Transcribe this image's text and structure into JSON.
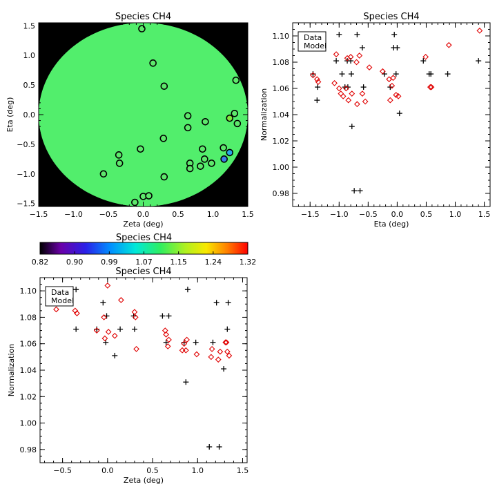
{
  "chart_data": [
    {
      "id": "map",
      "type": "scatter",
      "title": "Species CH4",
      "xlabel": "Zeta (deg)",
      "ylabel": "Eta (deg)",
      "xlim": [
        -1.5,
        1.5
      ],
      "ylim": [
        -1.55,
        1.55
      ],
      "xticks": [
        "−1.5",
        "−1.0",
        "−0.5",
        "0.0",
        "0.5",
        "1.0",
        "1.5"
      ],
      "yticks": [
        "−1.5",
        "−1.0",
        "−0.5",
        "0.0",
        "0.5",
        "1.0",
        "1.5"
      ],
      "background": "#000000",
      "field_color": "#52ee6c",
      "points": [
        {
          "x": -0.02,
          "y": 1.45,
          "c": "#5ee86c"
        },
        {
          "x": 0.14,
          "y": 0.87,
          "c": "#5ee86c"
        },
        {
          "x": 0.3,
          "y": 0.48,
          "c": "#5ee86c"
        },
        {
          "x": 1.33,
          "y": 0.58,
          "c": "#5ee86c"
        },
        {
          "x": 0.64,
          "y": -0.02,
          "c": "#5ee86c"
        },
        {
          "x": 1.31,
          "y": 0.02,
          "c": "#5ee86c"
        },
        {
          "x": 1.24,
          "y": -0.06,
          "c": "#7fe63c"
        },
        {
          "x": 0.89,
          "y": -0.12,
          "c": "#5ee86c"
        },
        {
          "x": 1.35,
          "y": -0.15,
          "c": "#5ee86c"
        },
        {
          "x": 0.64,
          "y": -0.22,
          "c": "#5ee86c"
        },
        {
          "x": 0.29,
          "y": -0.4,
          "c": "#5ee86c"
        },
        {
          "x": -0.04,
          "y": -0.58,
          "c": "#5ee86c"
        },
        {
          "x": 0.85,
          "y": -0.58,
          "c": "#5ee86c"
        },
        {
          "x": 1.15,
          "y": -0.56,
          "c": "#5ee86c"
        },
        {
          "x": 1.24,
          "y": -0.64,
          "c": "#2aa9e8"
        },
        {
          "x": -0.35,
          "y": -0.68,
          "c": "#5ee86c"
        },
        {
          "x": 0.88,
          "y": -0.75,
          "c": "#5ee86c"
        },
        {
          "x": 1.16,
          "y": -0.75,
          "c": "#3a7ee8"
        },
        {
          "x": -0.34,
          "y": -0.82,
          "c": "#5ee86c"
        },
        {
          "x": 0.67,
          "y": -0.82,
          "c": "#5ee86c"
        },
        {
          "x": 0.98,
          "y": -0.82,
          "c": "#5ee86c"
        },
        {
          "x": 0.82,
          "y": -0.87,
          "c": "#5ee86c"
        },
        {
          "x": 0.67,
          "y": -0.91,
          "c": "#5ee86c"
        },
        {
          "x": -0.57,
          "y": -1.0,
          "c": "#5ee86c"
        },
        {
          "x": 0.3,
          "y": -1.05,
          "c": "#5ee86c"
        },
        {
          "x": 0.0,
          "y": -1.38,
          "c": "#5ee86c"
        },
        {
          "x": 0.08,
          "y": -1.37,
          "c": "#5ee86c"
        },
        {
          "x": -0.12,
          "y": -1.48,
          "c": "#5ee86c"
        }
      ]
    },
    {
      "id": "colorbar",
      "type": "heatmap",
      "title": "Species CH4",
      "range": [
        0.82,
        1.32
      ],
      "tick_labels": [
        "0.82",
        "0.90",
        "0.99",
        "1.07",
        "1.15",
        "1.24",
        "1.32"
      ]
    },
    {
      "id": "eta",
      "type": "scatter",
      "title": "Species CH4",
      "xlabel": "Eta (deg)",
      "ylabel": "Normalization",
      "xlim": [
        -1.8,
        1.6
      ],
      "ylim": [
        0.97,
        1.11
      ],
      "xticks": [
        "−1.5",
        "−1.0",
        "−0.5",
        "0.0",
        "0.5",
        "1.0",
        "1.5"
      ],
      "yticks": [
        "0.98",
        "1.00",
        "1.02",
        "1.04",
        "1.06",
        "1.08",
        "1.10"
      ],
      "legend": [
        "Data",
        "Model"
      ],
      "series": [
        {
          "name": "Data",
          "marker": "plus",
          "color": "#000000",
          "x": [
            -1.45,
            -1.37,
            -1.38,
            -1.05,
            -1.0,
            -0.95,
            -0.9,
            -0.86,
            -0.85,
            -0.8,
            -0.79,
            -0.78,
            -0.74,
            -0.69,
            -0.64,
            -0.6,
            -0.58,
            -0.22,
            -0.12,
            -0.06,
            -0.05,
            -0.02,
            0.0,
            0.04,
            0.45,
            0.55,
            0.58,
            0.87,
            1.4
          ],
          "y": [
            1.071,
            1.061,
            1.051,
            1.081,
            1.101,
            1.071,
            1.061,
            1.081,
            1.061,
            1.081,
            1.071,
            1.031,
            0.982,
            1.101,
            0.982,
            1.091,
            1.061,
            1.071,
            1.061,
            1.091,
            1.101,
            1.071,
            1.091,
            1.041,
            1.081,
            1.071,
            1.071,
            1.071,
            1.081
          ]
        },
        {
          "name": "Model",
          "marker": "diamond",
          "color": "#e00000",
          "x": [
            -1.45,
            -1.38,
            -1.36,
            -1.08,
            -1.05,
            -1.0,
            -0.97,
            -0.93,
            -0.88,
            -0.86,
            -0.84,
            -0.8,
            -0.78,
            -0.7,
            -0.69,
            -0.65,
            -0.6,
            -0.55,
            -0.48,
            -0.25,
            -0.14,
            -0.12,
            -0.09,
            -0.07,
            -0.02,
            0.02,
            0.49,
            0.57,
            0.59,
            0.89,
            1.42
          ],
          "y": [
            1.07,
            1.067,
            1.065,
            1.064,
            1.086,
            1.06,
            1.056,
            1.054,
            1.06,
            1.083,
            1.051,
            1.084,
            1.056,
            1.08,
            1.048,
            1.085,
            1.056,
            1.05,
            1.076,
            1.073,
            1.067,
            1.051,
            1.062,
            1.068,
            1.055,
            1.054,
            1.084,
            1.061,
            1.061,
            1.093,
            1.104
          ]
        }
      ]
    },
    {
      "id": "zeta",
      "type": "scatter",
      "title": "Species CH4",
      "xlabel": "Zeta (deg)",
      "ylabel": "Normalization",
      "xlim": [
        -0.75,
        1.55
      ],
      "ylim": [
        0.97,
        1.11
      ],
      "xticks": [
        "−0.5",
        "0.0",
        "0.5",
        "1.0",
        "1.5"
      ],
      "yticks": [
        "0.98",
        "1.00",
        "1.02",
        "1.04",
        "1.06",
        "1.08",
        "1.10"
      ],
      "legend": [
        "Data",
        "Model"
      ],
      "series": [
        {
          "name": "Data",
          "marker": "plus",
          "color": "#000000",
          "x": [
            -0.35,
            -0.35,
            -0.12,
            -0.05,
            -0.02,
            -0.01,
            0.08,
            0.14,
            0.29,
            0.3,
            0.61,
            0.65,
            0.68,
            0.85,
            0.87,
            0.89,
            0.98,
            1.13,
            1.17,
            1.21,
            1.24,
            1.29,
            1.33,
            1.34
          ],
          "y": [
            1.101,
            1.071,
            1.071,
            1.091,
            1.061,
            1.081,
            1.051,
            1.071,
            1.081,
            1.071,
            1.081,
            1.061,
            1.081,
            1.061,
            1.031,
            1.101,
            1.061,
            0.982,
            1.061,
            1.091,
            0.982,
            1.041,
            1.071,
            1.091
          ]
        },
        {
          "name": "Model",
          "marker": "diamond",
          "color": "#e00000",
          "x": [
            -0.57,
            -0.36,
            -0.34,
            -0.12,
            -0.04,
            -0.03,
            0.0,
            0.01,
            0.08,
            0.15,
            0.3,
            0.31,
            0.32,
            0.64,
            0.65,
            0.67,
            0.68,
            0.83,
            0.85,
            0.87,
            0.88,
            0.99,
            1.15,
            1.16,
            1.23,
            1.25,
            1.31,
            1.32,
            1.33,
            1.35
          ],
          "y": [
            1.086,
            1.085,
            1.083,
            1.07,
            1.08,
            1.064,
            1.104,
            1.069,
            1.066,
            1.093,
            1.084,
            1.08,
            1.056,
            1.07,
            1.067,
            1.058,
            1.063,
            1.055,
            1.06,
            1.055,
            1.063,
            1.052,
            1.05,
            1.056,
            1.048,
            1.054,
            1.061,
            1.061,
            1.054,
            1.051
          ]
        }
      ]
    }
  ]
}
